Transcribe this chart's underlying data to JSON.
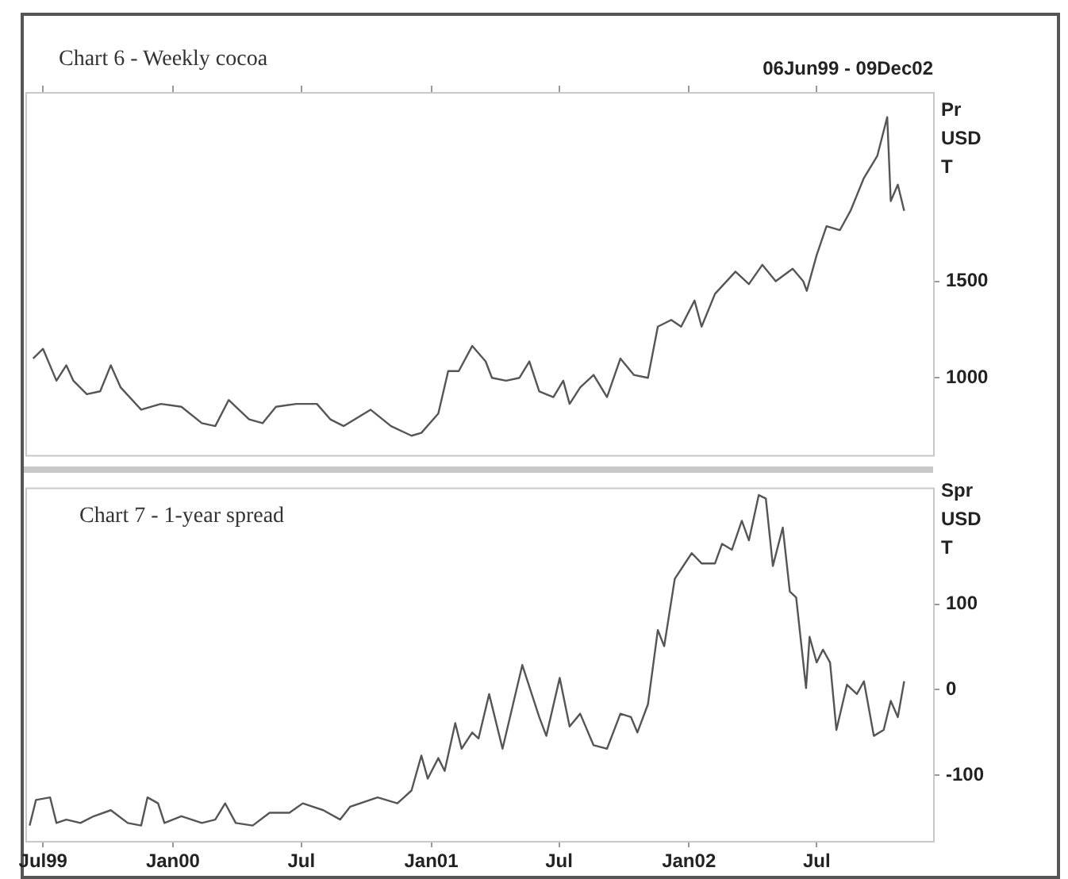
{
  "chart_data": [
    {
      "type": "line",
      "title": "Chart 6 - Weekly cocoa",
      "subtitle": "06Jun99 - 09Dec02",
      "ylabel": "Pr USD T",
      "x": [
        "1999-06-17",
        "1999-07-01",
        "1999-07-20",
        "1999-08-03",
        "1999-08-13",
        "1999-09-01",
        "1999-09-20",
        "1999-10-05",
        "1999-10-19",
        "1999-11-17",
        "1999-12-15",
        "2000-01-13",
        "2000-02-11",
        "2000-03-01",
        "2000-03-20",
        "2000-04-18",
        "2000-05-07",
        "2000-05-26",
        "2000-06-24",
        "2000-07-23",
        "2000-08-11",
        "2000-08-30",
        "2000-10-07",
        "2000-11-05",
        "2000-12-04",
        "2000-12-18",
        "2001-01-11",
        "2001-01-25",
        "2001-02-09",
        "2001-02-28",
        "2001-03-19",
        "2001-03-28",
        "2001-04-17",
        "2001-05-06",
        "2001-05-20",
        "2001-06-03",
        "2001-06-23",
        "2001-07-07",
        "2001-07-16",
        "2001-07-31",
        "2001-08-19",
        "2001-09-07",
        "2001-09-26",
        "2001-10-15",
        "2001-11-04",
        "2001-11-18",
        "2001-12-07",
        "2001-12-21",
        "2002-01-09",
        "2002-01-19",
        "2002-02-07",
        "2002-03-08",
        "2002-03-27",
        "2002-04-15",
        "2002-05-04",
        "2002-05-28",
        "2002-06-12",
        "2002-06-17",
        "2002-07-01",
        "2002-07-15",
        "2002-08-03",
        "2002-08-18",
        "2002-09-06",
        "2002-09-25",
        "2002-10-09",
        "2002-10-14",
        "2002-10-24",
        "2002-11-02"
      ],
      "series": [
        {
          "color": "#555555",
          "values": [
            1100,
            1150,
            985,
            1065,
            985,
            915,
            930,
            1065,
            950,
            835,
            865,
            850,
            765,
            750,
            885,
            785,
            765,
            850,
            865,
            865,
            785,
            750,
            835,
            750,
            700,
            715,
            815,
            1035,
            1035,
            1165,
            1085,
            1000,
            985,
            1000,
            1085,
            930,
            900,
            985,
            865,
            950,
            1015,
            900,
            1100,
            1015,
            1000,
            1265,
            1300,
            1265,
            1400,
            1265,
            1435,
            1550,
            1485,
            1585,
            1500,
            1565,
            1500,
            1450,
            1635,
            1785,
            1765,
            1865,
            2035,
            2150,
            2350,
            1915,
            2000,
            1865
          ]
        }
      ],
      "xlim": [
        "1999-06-06",
        "2002-12-13"
      ],
      "xticks": [
        {
          "value": "1999-07",
          "label": null
        },
        {
          "value": "2000-01",
          "label": null
        },
        {
          "value": "2000-07",
          "label": null
        },
        {
          "value": "2001-01",
          "label": null
        },
        {
          "value": "2001-07",
          "label": null
        },
        {
          "value": "2002-01",
          "label": null
        },
        {
          "value": "2002-07",
          "label": null
        }
      ],
      "ylim": [
        600,
        2480
      ],
      "yticks": [
        1000,
        1500
      ],
      "tick_labels": "y",
      "grid": false,
      "legend": false,
      "marker": "none"
    },
    {
      "type": "line",
      "title": "Chart 7 - 1-year spread",
      "ylabel": "Spr USD T",
      "x": [
        "1999-06-12",
        "1999-06-21",
        "1999-07-11",
        "1999-07-20",
        "1999-08-03",
        "1999-08-23",
        "1999-09-11",
        "1999-10-05",
        "1999-10-29",
        "1999-11-17",
        "1999-11-26",
        "1999-12-11",
        "1999-12-20",
        "2000-01-13",
        "2000-02-11",
        "2000-03-01",
        "2000-03-15",
        "2000-03-30",
        "2000-04-23",
        "2000-05-17",
        "2000-06-14",
        "2000-07-03",
        "2000-08-01",
        "2000-08-25",
        "2000-09-08",
        "2000-10-17",
        "2000-11-14",
        "2000-12-04",
        "2000-12-18",
        "2000-12-27",
        "2001-01-11",
        "2001-01-20",
        "2001-02-04",
        "2001-02-13",
        "2001-02-28",
        "2001-03-09",
        "2001-03-24",
        "2001-04-12",
        "2001-05-10",
        "2001-06-03",
        "2001-06-13",
        "2001-07-02",
        "2001-07-16",
        "2001-07-31",
        "2001-08-19",
        "2001-09-07",
        "2001-09-26",
        "2001-10-11",
        "2001-10-20",
        "2001-11-04",
        "2001-11-18",
        "2001-11-27",
        "2001-12-12",
        "2002-01-05",
        "2002-01-19",
        "2002-02-07",
        "2002-02-17",
        "2002-03-03",
        "2002-03-17",
        "2002-03-27",
        "2002-04-10",
        "2002-04-20",
        "2002-04-30",
        "2002-05-14",
        "2002-05-24",
        "2002-06-02",
        "2002-06-16",
        "2002-06-21",
        "2002-07-01",
        "2002-07-10",
        "2002-07-20",
        "2002-07-29",
        "2002-08-13",
        "2002-08-27",
        "2002-09-06",
        "2002-09-20",
        "2002-10-04",
        "2002-10-14",
        "2002-10-24",
        "2002-11-02"
      ],
      "series": [
        {
          "color": "#555555",
          "values": [
            -159,
            -129,
            -126,
            -156,
            -152,
            -156,
            -148,
            -141,
            -156,
            -159,
            -126,
            -133,
            -156,
            -148,
            -156,
            -152,
            -133,
            -156,
            -159,
            -144,
            -144,
            -133,
            -141,
            -152,
            -137,
            -126,
            -133,
            -118,
            -77,
            -104,
            -80,
            -95,
            -39,
            -69,
            -50,
            -57,
            -5,
            -69,
            29,
            -32,
            -54,
            14,
            -43,
            -28,
            -65,
            -69,
            -28,
            -32,
            -50,
            -17,
            70,
            51,
            130,
            160,
            148,
            148,
            171,
            164,
            198,
            175,
            228,
            224,
            145,
            190,
            115,
            108,
            2,
            62,
            32,
            47,
            32,
            -47,
            6,
            -5,
            10,
            -54,
            -47,
            -13,
            -32,
            10
          ]
        }
      ],
      "xlim": [
        "1999-06-06",
        "2002-12-13"
      ],
      "xticks": [
        {
          "value": "1999-07",
          "label": "Jul99"
        },
        {
          "value": "2000-01",
          "label": "Jan00"
        },
        {
          "value": "2000-07",
          "label": "Jul"
        },
        {
          "value": "2001-01",
          "label": "Jan01"
        },
        {
          "value": "2001-07",
          "label": "Jul"
        },
        {
          "value": "2002-01",
          "label": "Jan02"
        },
        {
          "value": "2002-07",
          "label": "Jul"
        }
      ],
      "ylim": [
        -177,
        237
      ],
      "yticks": [
        -100,
        0,
        100
      ],
      "grid": false,
      "legend": false,
      "marker": "none"
    }
  ]
}
